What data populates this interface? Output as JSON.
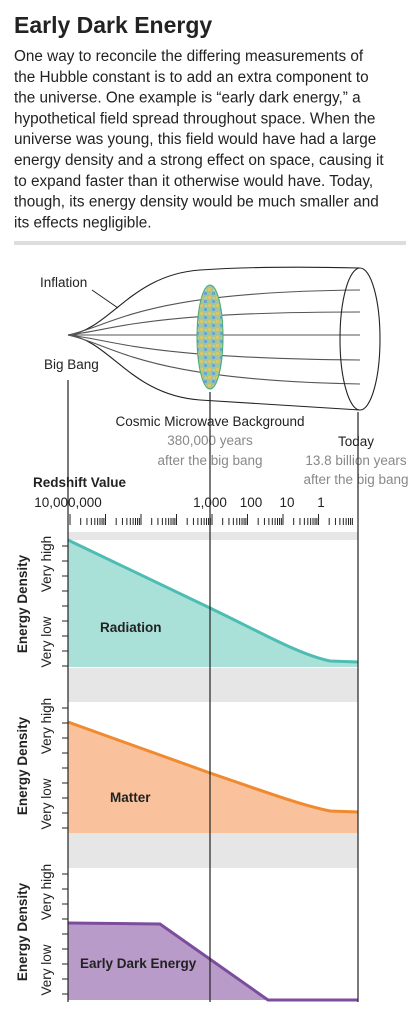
{
  "header": {
    "title": "Early Dark Energy",
    "body_lines": [
      "One way to reconcile the differing measurements of",
      "the Hubble constant is to add an extra component to",
      "the universe. One example is “early dark energy,” a",
      "hypothetical field spread throughout space. When the",
      "universe was young, this field would have had a large",
      "energy density and a strong effect on space, causing it",
      "to expand faster than it otherwise would have. Today,",
      "though, its energy density would be much smaller and",
      "its effects negligible."
    ]
  },
  "diagram": {
    "inflation": "Inflation",
    "big_bang": "Big Bang",
    "cmb": {
      "label": "Cosmic Microwave Background",
      "time_lines": [
        "380,000 years",
        "after the big bang"
      ]
    },
    "today": {
      "label": "Today",
      "time_lines": [
        "13.8 billion years",
        "after the big bang"
      ]
    }
  },
  "axis": {
    "title": "Redshift Value",
    "tick_labels": [
      "10,000,000",
      "1,000",
      "100",
      "10",
      "1"
    ]
  },
  "panels": [
    {
      "y_title": "Energy Density",
      "high": "Very high",
      "low": "Very low",
      "label": "Radiation"
    },
    {
      "y_title": "Energy Density",
      "high": "Very high",
      "low": "Very low",
      "label": "Matter"
    },
    {
      "y_title": "Energy Density",
      "high": "Very high",
      "low": "Very low",
      "label": "Early Dark Energy"
    }
  ]
}
